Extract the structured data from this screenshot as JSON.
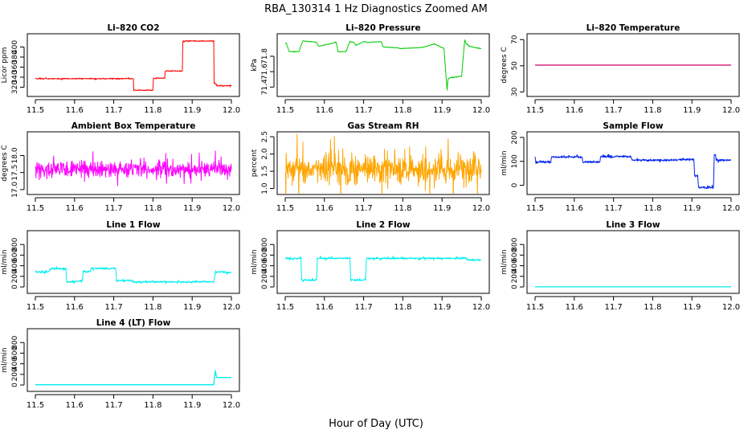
{
  "figure": {
    "title": "RBA_130314  1 Hz Diagnostics Zoomed AM",
    "xlabel": "Hour of Day (UTC)"
  },
  "chart_data": [
    {
      "type": "line",
      "title": "Li–820 CO2",
      "ylabel": "Licor ppm",
      "xlabel": "Hour of Day (UTC)",
      "color": "#ff0000",
      "xlim": [
        11.5,
        12.0
      ],
      "ylim": [
        308,
        420
      ],
      "xticks": [
        11.5,
        11.6,
        11.7,
        11.8,
        11.9,
        12.0
      ],
      "yticks": [
        320,
        340,
        360,
        380,
        400
      ],
      "noise": 1.5,
      "series": [
        {
          "name": "CO2",
          "x": [
            11.5,
            11.75,
            11.751,
            11.8,
            11.801,
            11.83,
            11.831,
            11.875,
            11.876,
            11.955,
            11.956,
            11.962,
            11.963,
            12.0
          ],
          "y": [
            337,
            337,
            314,
            314,
            338,
            338,
            352,
            352,
            412,
            412,
            328,
            326,
            323,
            323
          ]
        }
      ]
    },
    {
      "type": "line",
      "title": "Li–820 Pressure",
      "ylabel": "kPa",
      "xlabel": "Hour of Day (UTC)",
      "color": "#00cc00",
      "xlim": [
        11.5,
        12.0
      ],
      "ylim": [
        71.32,
        72.05
      ],
      "xticks": [
        11.5,
        11.6,
        11.7,
        11.8,
        11.9,
        12.0
      ],
      "yticks": [
        71.4,
        71.6,
        71.8
      ],
      "noise": 0.005,
      "series": [
        {
          "name": "Pressure",
          "x": [
            11.5,
            11.503,
            11.51,
            11.535,
            11.545,
            11.58,
            11.585,
            11.63,
            11.635,
            11.655,
            11.665,
            11.675,
            11.68,
            11.7,
            11.71,
            11.745,
            11.75,
            11.785,
            11.795,
            11.84,
            11.855,
            11.88,
            11.905,
            11.91,
            11.913,
            11.915,
            11.92,
            11.95,
            11.955,
            11.958,
            11.962,
            11.97,
            11.985,
            12.0
          ],
          "y": [
            71.97,
            71.97,
            71.86,
            71.86,
            72.0,
            71.98,
            71.93,
            71.98,
            71.86,
            71.86,
            71.99,
            71.98,
            71.94,
            71.99,
            71.98,
            71.99,
            71.92,
            71.91,
            71.9,
            71.91,
            71.92,
            71.96,
            71.9,
            71.55,
            71.36,
            71.5,
            71.52,
            71.54,
            71.85,
            72.01,
            71.96,
            71.93,
            71.91,
            71.9
          ]
        }
      ]
    },
    {
      "type": "line",
      "title": "Li–820 Temperature",
      "ylabel": "degrees C",
      "xlabel": "Hour of Day (UTC)",
      "color": "#cc0066",
      "xlim": [
        11.5,
        12.0
      ],
      "ylim": [
        29,
        72
      ],
      "xticks": [
        11.5,
        11.6,
        11.7,
        11.8,
        11.9,
        12.0
      ],
      "yticks": [
        30,
        50,
        70
      ],
      "noise": 0,
      "series": [
        {
          "name": "Temperature",
          "x": [
            11.5,
            12.0
          ],
          "y": [
            50.5,
            50.5
          ]
        }
      ]
    },
    {
      "type": "line",
      "title": "Ambient Box Temperature",
      "ylabel": "degrees C",
      "xlabel": "Hour of Day (UTC)",
      "color": "#ff00ff",
      "xlim": [
        11.5,
        12.0
      ],
      "ylim": [
        16.95,
        18.6
      ],
      "xticks": [
        11.5,
        11.6,
        11.7,
        11.8,
        11.9,
        12.0
      ],
      "yticks": [
        17.0,
        17.5,
        18.0
      ],
      "noise": 0.3,
      "series": [
        {
          "name": "Box Temperature",
          "x": [
            11.5,
            12.0
          ],
          "y": [
            17.6,
            17.6
          ]
        }
      ]
    },
    {
      "type": "line",
      "title": "Gas Stream RH",
      "ylabel": "percent",
      "xlabel": "Hour of Day (UTC)",
      "color": "#ffa500",
      "xlim": [
        11.5,
        12.0
      ],
      "ylim": [
        0.92,
        2.55
      ],
      "xticks": [
        11.5,
        11.6,
        11.7,
        11.8,
        11.9,
        12.0
      ],
      "yticks": [
        1.0,
        1.5,
        2.0,
        2.5
      ],
      "noise": 0.55,
      "series": [
        {
          "name": "RH",
          "x": [
            11.5,
            12.0
          ],
          "y": [
            1.55,
            1.55
          ]
        }
      ]
    },
    {
      "type": "line",
      "title": "Sample Flow",
      "ylabel": "ml/min",
      "xlabel": "Hour of Day (UTC)",
      "color": "#0022ee",
      "xlim": [
        11.5,
        12.0
      ],
      "ylim": [
        -25,
        210
      ],
      "xticks": [
        11.5,
        11.6,
        11.7,
        11.8,
        11.9,
        12.0
      ],
      "yticks": [
        0,
        100,
        200
      ],
      "noise": 6,
      "series": [
        {
          "name": "Sample Flow",
          "x": [
            11.5,
            11.502,
            11.504,
            11.54,
            11.542,
            11.62,
            11.622,
            11.665,
            11.667,
            11.745,
            11.747,
            11.865,
            11.867,
            11.905,
            11.907,
            11.915,
            11.917,
            11.955,
            11.957,
            11.96,
            11.962,
            12.0
          ],
          "y": [
            118,
            97,
            97,
            97,
            118,
            118,
            97,
            97,
            120,
            120,
            105,
            105,
            108,
            108,
            40,
            40,
            -10,
            -10,
            130,
            130,
            105,
            105
          ]
        }
      ]
    },
    {
      "type": "line",
      "title": "Line 1 Flow",
      "ylabel": "ml/min",
      "xlabel": "Hour of Day (UTC)",
      "color": "#00eeee",
      "xlim": [
        11.5,
        12.0
      ],
      "ylim": [
        -60,
        1000
      ],
      "xticks": [
        11.5,
        11.6,
        11.7,
        11.8,
        11.9,
        12.0
      ],
      "yticks": [
        0,
        200,
        400,
        600,
        800
      ],
      "noise": 25,
      "series": [
        {
          "name": "Line 1",
          "x": [
            11.5,
            11.535,
            11.537,
            11.578,
            11.58,
            11.62,
            11.622,
            11.64,
            11.642,
            11.705,
            11.707,
            11.745,
            11.747,
            11.955,
            11.957,
            11.96,
            11.962,
            12.0
          ],
          "y": [
            280,
            280,
            340,
            340,
            90,
            120,
            290,
            290,
            350,
            350,
            120,
            120,
            95,
            95,
            180,
            300,
            280,
            280
          ]
        }
      ]
    },
    {
      "type": "line",
      "title": "Line 2 Flow",
      "ylabel": "ml/min",
      "xlabel": "Hour of Day (UTC)",
      "color": "#00eeee",
      "xlim": [
        11.5,
        12.0
      ],
      "ylim": [
        -60,
        1000
      ],
      "xticks": [
        11.5,
        11.6,
        11.7,
        11.8,
        11.9,
        12.0
      ],
      "yticks": [
        0,
        200,
        400,
        600,
        800
      ],
      "noise": 25,
      "series": [
        {
          "name": "Line 2",
          "x": [
            11.5,
            11.54,
            11.542,
            11.58,
            11.582,
            11.665,
            11.667,
            11.705,
            11.707,
            11.96,
            11.962,
            12.0
          ],
          "y": [
            540,
            540,
            130,
            130,
            540,
            540,
            130,
            130,
            540,
            540,
            510,
            510
          ]
        }
      ]
    },
    {
      "type": "line",
      "title": "Line 3 Flow",
      "ylabel": "ml/min",
      "xlabel": "Hour of Day (UTC)",
      "color": "#00eeee",
      "xlim": [
        11.5,
        12.0
      ],
      "ylim": [
        -60,
        1000
      ],
      "xticks": [
        11.5,
        11.6,
        11.7,
        11.8,
        11.9,
        12.0
      ],
      "yticks": [
        0,
        200,
        400,
        600,
        800
      ],
      "noise": 0,
      "series": [
        {
          "name": "Line 3",
          "x": [
            11.5,
            12.0
          ],
          "y": [
            2,
            2
          ]
        }
      ]
    },
    {
      "type": "line",
      "title": "Line 4 (LT) Flow",
      "ylabel": "ml/min",
      "xlabel": "Hour of Day (UTC)",
      "color": "#00eeee",
      "xlim": [
        11.5,
        12.0
      ],
      "ylim": [
        -60,
        1000
      ],
      "xticks": [
        11.5,
        11.6,
        11.7,
        11.8,
        11.9,
        12.0
      ],
      "yticks": [
        0,
        200,
        400,
        600,
        800
      ],
      "noise": 0,
      "series": [
        {
          "name": "Line 4 (LT)",
          "x": [
            11.5,
            11.955,
            11.957,
            11.959,
            11.962,
            11.965,
            12.0
          ],
          "y": [
            5,
            5,
            150,
            270,
            150,
            140,
            140
          ]
        }
      ]
    }
  ]
}
